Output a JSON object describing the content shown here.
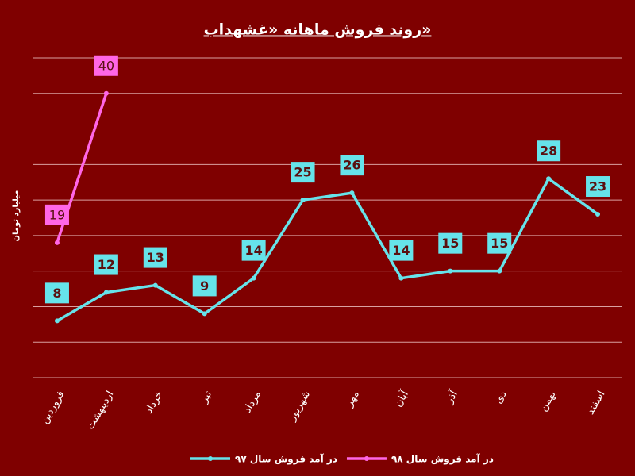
{
  "chart_data": {
    "type": "line",
    "title": "روند فروش ماهانه «غشهداب»",
    "y_label": "میلیارد تومان",
    "categories": [
      "فروردین",
      "اردیبهشت",
      "خرداد",
      "تیر",
      "مرداد",
      "شهریور",
      "مهر",
      "آبان",
      "آذر",
      "دی",
      "بهمن",
      "اسفند"
    ],
    "series": [
      {
        "name": "در آمد فروش سال ۹۷",
        "color": "#66e3ea",
        "values": [
          8,
          12,
          13,
          9,
          14,
          25,
          26,
          14,
          15,
          15,
          28,
          23
        ]
      },
      {
        "name": "در آمد فروش سال ۹۸",
        "color": "#ff66e6",
        "values": [
          19,
          40,
          null,
          null,
          null,
          null,
          null,
          null,
          null,
          null,
          null,
          null
        ]
      }
    ],
    "ylim": [
      0,
      45
    ],
    "yticks": [
      0,
      5,
      10,
      15,
      20,
      25,
      30,
      35,
      40,
      45
    ],
    "grid": true,
    "legend": "bottom"
  }
}
